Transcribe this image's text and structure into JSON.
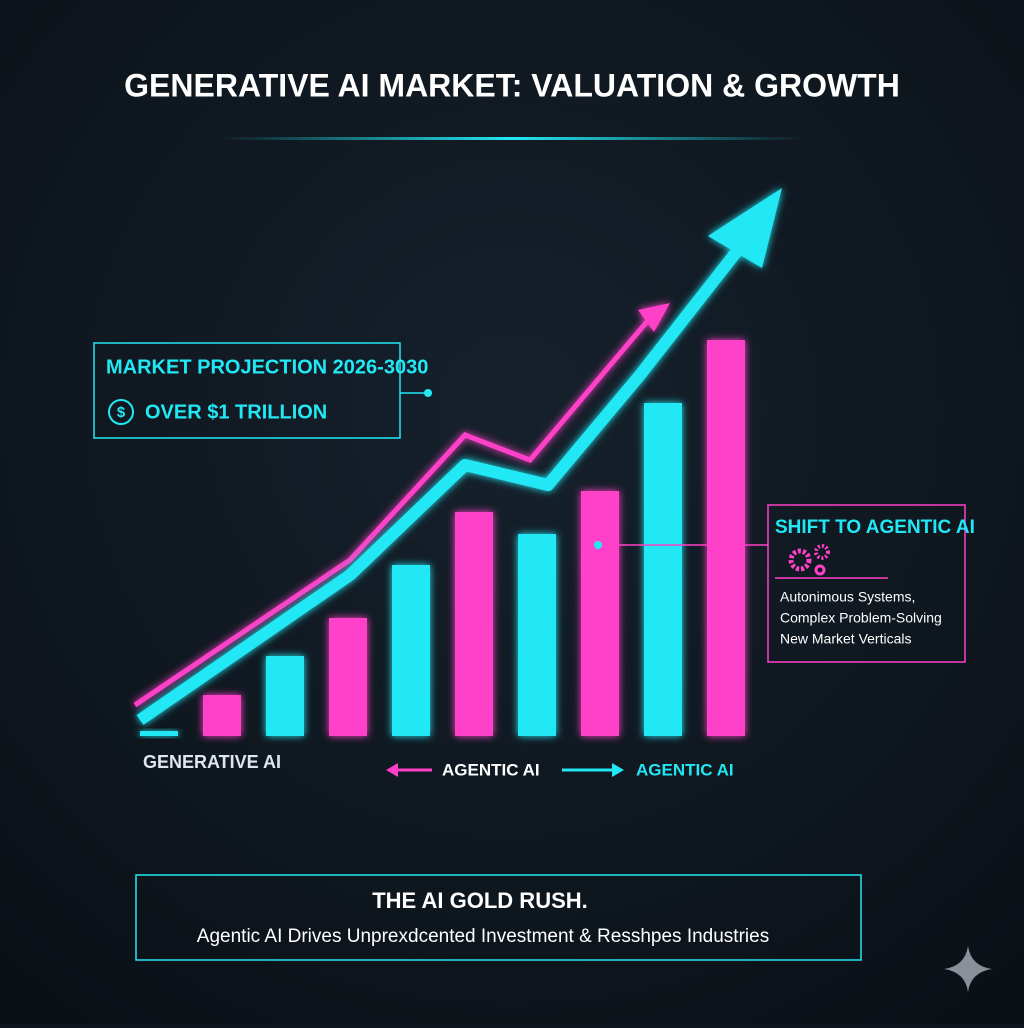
{
  "chart_data": {
    "type": "bar",
    "title": "GENERATIVE AI MARKET: VALUATION & GROWTH",
    "values": [
      5,
      41,
      80,
      118,
      171,
      224,
      202,
      245,
      333,
      396
    ],
    "colors": [
      "#22e8f5",
      "#ff3fc8",
      "#22e8f5",
      "#ff3fc8",
      "#22e8f5",
      "#ff3fc8",
      "#22e8f5",
      "#ff3fc8",
      "#22e8f5",
      "#ff3fc8"
    ],
    "axis_labels": [
      "GENERATIVE AI",
      "AGENTIC AI",
      "AGENTIC AI"
    ],
    "callouts": [
      {
        "title": "MARKET PROJECTION 2026-3030",
        "icon": "$",
        "text": "OVER $1 TRILLION"
      },
      {
        "title": "SHIFT TO AGENTIC AI",
        "lines": [
          "Autonimous Systems,",
          "Complex Problem-Solving",
          "New Market Verticals"
        ]
      }
    ],
    "footer": {
      "title": "THE AI GOLD RUSH.",
      "subtitle": "Agentic AI Drives Unprexdcented Investment & Resshpes Industries"
    }
  }
}
